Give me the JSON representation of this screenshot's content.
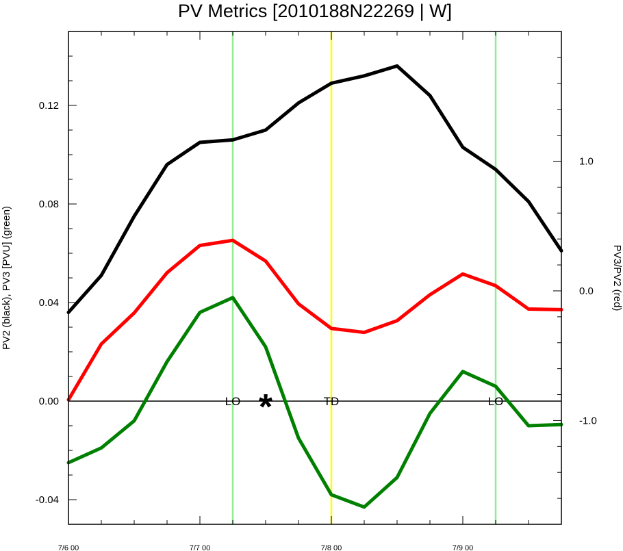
{
  "chart_data": {
    "type": "line",
    "title": "PV Metrics [2010188N22269 | W]",
    "ylabel": "PV2 (black), PV3 [PVU] (green)",
    "y2label": "PV3/PV2 (red)",
    "xlim": [
      0,
      3.75
    ],
    "ylim": [
      -0.05,
      0.15
    ],
    "y2lim": [
      -1.8,
      2.0
    ],
    "x_tick_values": [
      0,
      1,
      2,
      3
    ],
    "x_tick_labels": [
      "7/6 00",
      "7/7 00",
      "7/8 00",
      "7/9 00"
    ],
    "y_tick_values": [
      -0.04,
      0.0,
      0.04,
      0.08,
      0.12
    ],
    "y_tick_labels": [
      "-0.04",
      "0.00",
      "0.04",
      "0.08",
      "0.12"
    ],
    "y2_tick_values": [
      -1.0,
      0.0,
      1.0
    ],
    "y2_tick_labels": [
      "-1.0",
      "0.0",
      "1.0"
    ],
    "x": [
      0,
      0.25,
      0.5,
      0.75,
      1.0,
      1.25,
      1.5,
      1.75,
      2.0,
      2.25,
      2.5,
      2.75,
      3.0,
      3.25,
      3.5,
      3.75
    ],
    "series": [
      {
        "axis": "left",
        "color": "#000000",
        "values": [
          0.036,
          0.051,
          0.075,
          0.096,
          0.105,
          0.106,
          0.11,
          0.121,
          0.129,
          0.132,
          0.136,
          0.124,
          0.103,
          0.094,
          0.081,
          0.061
        ]
      },
      {
        "axis": "left",
        "color": "#008000",
        "values": [
          -0.025,
          -0.019,
          -0.008,
          0.016,
          0.036,
          0.042,
          0.022,
          -0.015,
          -0.038,
          -0.043,
          -0.031,
          -0.005,
          0.012,
          0.006,
          -0.01,
          -0.0095
        ]
      },
      {
        "axis": "right",
        "color": "#ff0000",
        "values": [
          -0.84,
          -0.41,
          -0.17,
          0.14,
          0.35,
          0.39,
          0.23,
          -0.1,
          -0.29,
          -0.32,
          -0.23,
          -0.03,
          0.13,
          0.04,
          -0.14,
          -0.145
        ]
      }
    ],
    "vlines": [
      {
        "x": 1.25,
        "color": "#90ee90",
        "label": "LO"
      },
      {
        "x": 2.0,
        "color": "#ffff00",
        "label": "TD"
      },
      {
        "x": 3.25,
        "color": "#90ee90",
        "label": "LO"
      }
    ],
    "marker": {
      "x": 1.5,
      "y": 0.0,
      "symbol": "*"
    },
    "zero_line": true,
    "grid": false
  }
}
